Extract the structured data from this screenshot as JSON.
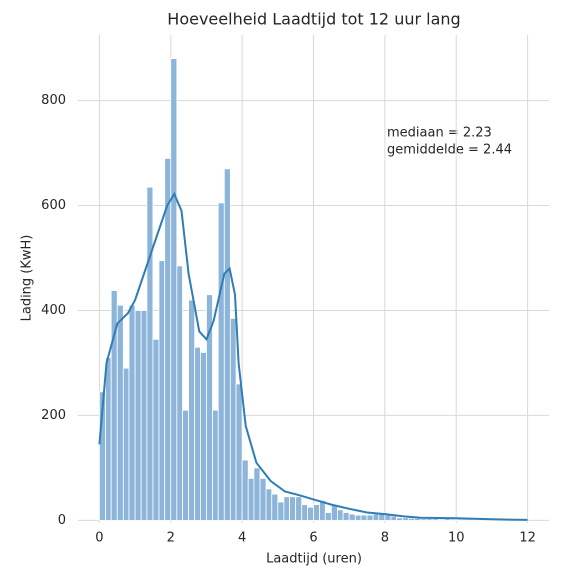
{
  "chart_data": {
    "type": "histogram",
    "title": "Hoeveelheid Laadtijd tot 12 uur lang",
    "x_label": "Laadtijd (uren)",
    "y_label": "Lading (KwH)",
    "annotations": [
      "mediaan = 2.23",
      "gemiddelde = 2.44"
    ],
    "bins": [
      0,
      0.17,
      0.33,
      0.5,
      0.67,
      0.83,
      1,
      1.17,
      1.33,
      1.5,
      1.67,
      1.83,
      2,
      2.17,
      2.33,
      2.5,
      2.67,
      2.83,
      3,
      3.17,
      3.33,
      3.5,
      3.67,
      3.83,
      4,
      4.17,
      4.33,
      4.5,
      4.67,
      4.83,
      5,
      5.17,
      5.33,
      5.5,
      5.67,
      5.83,
      6,
      6.17,
      6.33,
      6.5,
      6.67,
      6.83,
      7,
      7.17,
      7.33,
      7.5,
      7.67,
      7.83,
      8,
      8.17,
      8.33,
      8.5,
      8.67,
      8.83,
      9,
      9.17,
      9.33,
      9.5,
      9.67,
      9.83,
      10,
      10.17,
      10.33,
      10.5,
      10.67,
      10.83,
      11,
      11.17,
      11.33,
      11.5,
      11.67,
      11.83,
      12
    ],
    "counts": [
      245,
      310,
      438,
      410,
      290,
      410,
      400,
      400,
      635,
      345,
      495,
      690,
      880,
      485,
      210,
      420,
      330,
      320,
      430,
      210,
      605,
      670,
      385,
      260,
      115,
      80,
      100,
      80,
      60,
      50,
      35,
      45,
      45,
      45,
      30,
      25,
      30,
      38,
      15,
      30,
      20,
      15,
      12,
      10,
      10,
      10,
      12,
      12,
      10,
      8,
      5,
      5,
      4,
      4,
      3,
      3,
      3,
      2,
      3,
      2,
      2,
      2,
      2,
      1,
      2,
      1,
      1,
      1,
      1,
      1,
      1,
      1
    ],
    "color": "#8db4d9",
    "kde": {
      "color": "#2f7db6",
      "x": [
        0,
        0.2,
        0.5,
        0.8,
        1.0,
        1.3,
        1.6,
        1.9,
        2.1,
        2.3,
        2.5,
        2.8,
        3.0,
        3.2,
        3.5,
        3.65,
        3.8,
        3.9,
        4.1,
        4.4,
        4.8,
        5.2,
        5.6,
        6.0,
        6.5,
        7,
        7.5,
        8,
        8.5,
        9,
        10,
        11,
        12
      ],
      "y": [
        145,
        300,
        375,
        395,
        420,
        480,
        540,
        600,
        622,
        590,
        470,
        360,
        345,
        380,
        470,
        480,
        430,
        300,
        180,
        110,
        75,
        55,
        48,
        40,
        30,
        22,
        15,
        12,
        8,
        5,
        4,
        2,
        1
      ]
    },
    "xlim": [
      -0.6,
      12.6
    ],
    "ylim": [
      -5,
      925
    ],
    "xticks": [
      0,
      2,
      4,
      6,
      8,
      10,
      12
    ],
    "yticks": [
      0,
      200,
      400,
      600,
      800
    ],
    "grid": true
  }
}
